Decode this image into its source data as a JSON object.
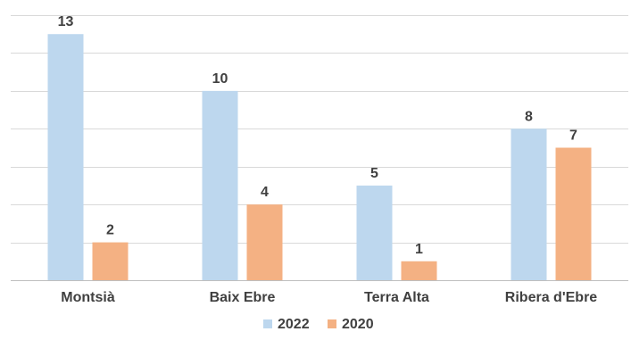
{
  "chart_data": {
    "type": "bar",
    "categories": [
      "Montsià",
      "Baix Ebre",
      "Terra Alta",
      "Ribera d'Ebre"
    ],
    "series": [
      {
        "name": "2022",
        "values": [
          13,
          10,
          5,
          8
        ],
        "color": "#bdd7ee"
      },
      {
        "name": "2020",
        "values": [
          2,
          4,
          1,
          7
        ],
        "color": "#f4b183"
      }
    ],
    "ylim": [
      0,
      14
    ],
    "ytick_step": 2,
    "grid": true,
    "y_tick_labels_shown": false,
    "data_labels": true,
    "legend_position": "bottom",
    "title": "",
    "xlabel": "",
    "ylabel": ""
  }
}
